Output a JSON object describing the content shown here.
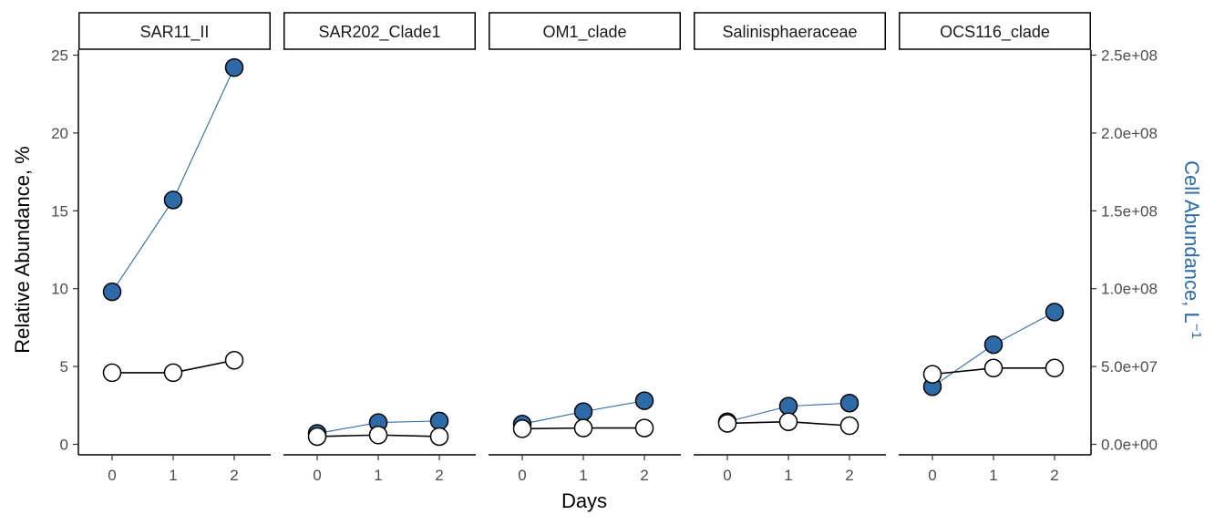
{
  "chart_data": {
    "type": "line",
    "facet_titles": [
      "SAR11_II",
      "SAR202_Clade1",
      "OM1_clade",
      "Salinisphaeraceae",
      "OCS116_clade"
    ],
    "x": [
      0,
      1,
      2
    ],
    "x_tick_labels": [
      "0",
      "1",
      "2"
    ],
    "xlabel": "Days",
    "ylabel_left": "Relative Abundance, %",
    "ylabel_right": "Cell Abundance, L",
    "ylabel_right_superscript": "−1",
    "ylim_left": [
      0,
      25
    ],
    "ylim_right": [
      0,
      250000000
    ],
    "yticks_left": [
      0,
      5,
      10,
      15,
      20,
      25
    ],
    "yticks_left_labels": [
      "0",
      "5",
      "10",
      "15",
      "20",
      "25"
    ],
    "yticks_right": [
      0,
      50000000,
      100000000,
      150000000,
      200000000,
      250000000
    ],
    "yticks_right_labels": [
      "0.0e+00",
      "5.0e+07",
      "1.0e+08",
      "1.5e+08",
      "2.0e+08",
      "2.5e+08"
    ],
    "grid": false,
    "series": [
      {
        "axis": "left",
        "marker": "open-circle",
        "color": "#000000",
        "fill": "#ffffff",
        "values": [
          [
            4.6,
            4.6,
            5.4
          ],
          [
            0.5,
            0.6,
            0.5
          ],
          [
            1.0,
            1.05,
            1.05
          ],
          [
            1.35,
            1.45,
            1.2
          ],
          [
            4.5,
            4.9,
            4.9
          ]
        ]
      },
      {
        "axis": "right",
        "marker": "filled-circle",
        "color": "#2e6aa8",
        "fill": "#2e6aa8",
        "values": [
          [
            98000000,
            157000000,
            242000000
          ],
          [
            7000000,
            14000000,
            15000000
          ],
          [
            13000000,
            21000000,
            28000000
          ],
          [
            14500000,
            24500000,
            26500000
          ],
          [
            37000000,
            64000000,
            85000000
          ]
        ]
      }
    ]
  }
}
